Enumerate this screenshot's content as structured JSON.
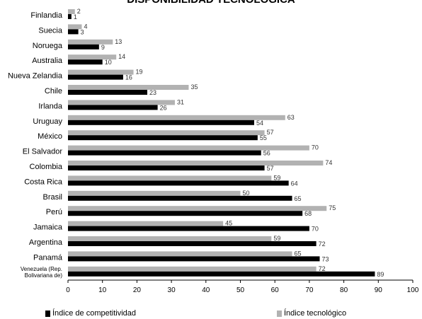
{
  "chart_data": {
    "type": "bar",
    "orientation": "horizontal",
    "title": "DISPONIBILIDAD TECNOLÓGICA",
    "categories": [
      "Finlandia",
      "Suecia",
      "Noruega",
      "Australia",
      "Nueva Zelandia",
      "Chile",
      "Irlanda",
      "Uruguay",
      "México",
      "El Salvador",
      "Colombia",
      "Costa Rica",
      "Brasil",
      "Perú",
      "Jamaica",
      "Argentina",
      "Panamá",
      "Venezuela (Rep. Bolivariana de)"
    ],
    "series": [
      {
        "name": "Índice tecnológico",
        "color": "#b2b2b2",
        "values": [
          2,
          4,
          13,
          14,
          19,
          35,
          31,
          63,
          57,
          70,
          74,
          59,
          50,
          75,
          45,
          59,
          65,
          72
        ]
      },
      {
        "name": "Índice de competitividad",
        "color": "#000000",
        "values": [
          1,
          3,
          9,
          10,
          16,
          23,
          26,
          54,
          55,
          56,
          57,
          64,
          65,
          68,
          70,
          72,
          73,
          89
        ]
      }
    ],
    "xlim": [
      0,
      100
    ],
    "xticks": [
      0,
      10,
      20,
      30,
      40,
      50,
      60,
      70,
      80,
      90,
      100
    ],
    "grid": false,
    "legend_position": "bottom"
  },
  "legend": {
    "competitividad": "Índice de competitividad",
    "tecnologico": "Índice tecnológico"
  }
}
